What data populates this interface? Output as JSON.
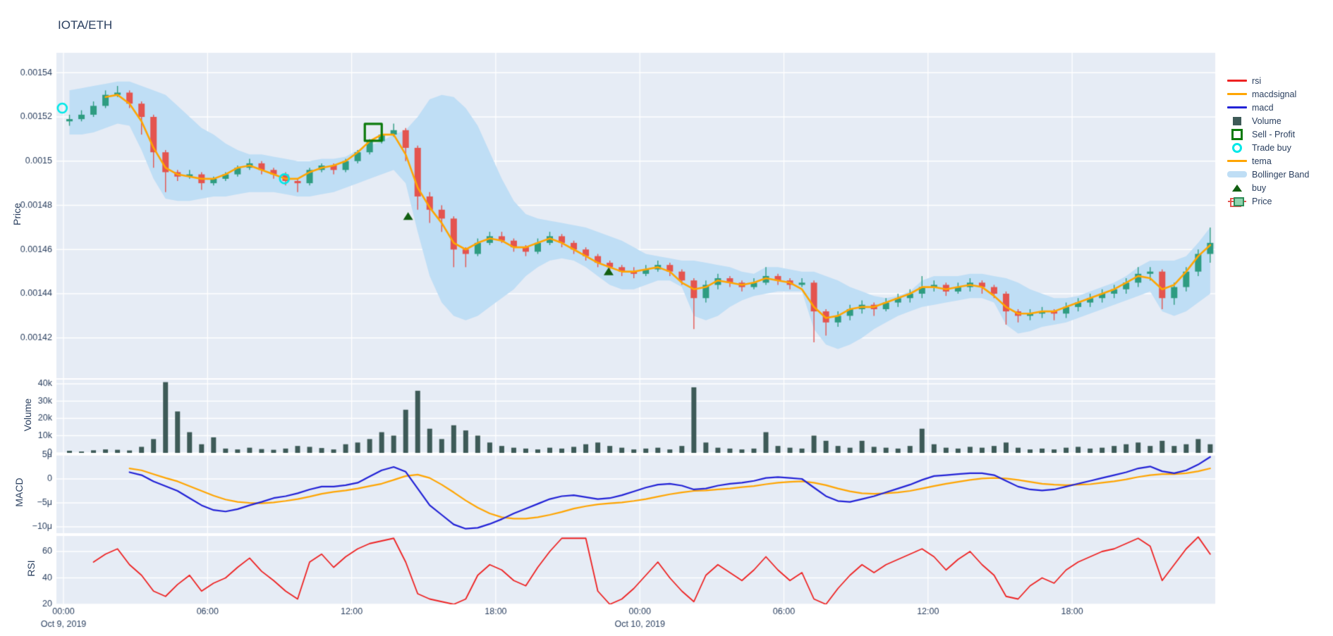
{
  "title": "IOTA/ETH",
  "colors": {
    "text": "#2a3f5f",
    "panel_bg": "#e6ecf5",
    "grid": "#ffffff",
    "candle_up": "#2e9c81",
    "candle_down": "#e4544f",
    "tema": "#ffa502",
    "macd": "#2222d6",
    "macdsignal": "#ffa502",
    "rsi": "#ee2222",
    "volume": "#3d5a57",
    "bollinger": "#bfdef5",
    "sell": "#0b7a0b",
    "trade_buy": "#00e8e8",
    "buy": "#115f11"
  },
  "legend": {
    "items": [
      {
        "label": "rsi",
        "type": "line",
        "color_key": "rsi"
      },
      {
        "label": "macdsignal",
        "type": "line",
        "color_key": "macdsignal"
      },
      {
        "label": "macd",
        "type": "line",
        "color_key": "macd"
      },
      {
        "label": "Volume",
        "type": "square",
        "color_key": "volume"
      },
      {
        "label": "Sell - Profit",
        "type": "open-square",
        "color_key": "sell"
      },
      {
        "label": "Trade buy",
        "type": "open-circle",
        "color_key": "trade_buy"
      },
      {
        "label": "tema",
        "type": "line",
        "color_key": "tema"
      },
      {
        "label": "Bollinger Band",
        "type": "band",
        "color_key": "bollinger"
      },
      {
        "label": "buy",
        "type": "triangle",
        "color_key": "buy"
      },
      {
        "label": "Price",
        "type": "candlestick",
        "color_key": "candle_up"
      }
    ]
  },
  "axes": {
    "x": {
      "ticks": [
        {
          "t": 0,
          "label": "00:00",
          "date": "Oct 9, 2019"
        },
        {
          "t": 6,
          "label": "06:00"
        },
        {
          "t": 12,
          "label": "12:00"
        },
        {
          "t": 18,
          "label": "18:00"
        },
        {
          "t": 24,
          "label": "00:00",
          "date": "Oct 10, 2019"
        },
        {
          "t": 30,
          "label": "06:00"
        },
        {
          "t": 36,
          "label": "12:00"
        },
        {
          "t": 42,
          "label": "18:00"
        }
      ]
    },
    "price": {
      "title": "Price",
      "ticks": [
        {
          "v": 1540,
          "label": "0.00154"
        },
        {
          "v": 1520,
          "label": "0.00152"
        },
        {
          "v": 1500,
          "label": "0.0015"
        },
        {
          "v": 1480,
          "label": "0.00148"
        },
        {
          "v": 1460,
          "label": "0.00146"
        },
        {
          "v": 1440,
          "label": "0.00144"
        },
        {
          "v": 1420,
          "label": "0.00142"
        }
      ]
    },
    "volume": {
      "title": "Volume",
      "ticks": [
        {
          "v": 40,
          "label": "40k"
        },
        {
          "v": 30,
          "label": "30k"
        },
        {
          "v": 20,
          "label": "20k"
        },
        {
          "v": 10,
          "label": "10k"
        },
        {
          "v": 0,
          "label": "0"
        }
      ]
    },
    "macd": {
      "title": "MACD",
      "ticks": [
        {
          "v": 5,
          "label": "5μ"
        },
        {
          "v": 0,
          "label": "0"
        },
        {
          "v": -5,
          "label": "−5μ"
        },
        {
          "v": -10,
          "label": "−10μ"
        }
      ]
    },
    "rsi": {
      "title": "RSI",
      "ticks": [
        {
          "v": 60,
          "label": "60"
        },
        {
          "v": 40,
          "label": "40"
        },
        {
          "v": 20,
          "label": "20"
        }
      ]
    }
  },
  "chart_data": {
    "type": "candlestick",
    "title": "IOTA/ETH",
    "x_start": "Oct 9, 2019 00:00",
    "interval_minutes": 30,
    "price_unit": "1e-6 ETH (values below are price × 10⁶)",
    "panels": [
      "Price",
      "Volume",
      "MACD",
      "RSI"
    ],
    "axis_ranges": {
      "price": [
        1402,
        1549
      ],
      "volume_k": [
        0,
        42.4
      ],
      "macd_u": [
        -11.3,
        5
      ],
      "rsi": [
        20,
        71.7
      ]
    },
    "ohlc": [
      [
        1518,
        1521,
        1516,
        1519
      ],
      [
        1519,
        1523,
        1518,
        1521
      ],
      [
        1521,
        1527,
        1520,
        1525
      ],
      [
        1525,
        1532,
        1524,
        1530
      ],
      [
        1530,
        1534,
        1529,
        1531
      ],
      [
        1531,
        1532,
        1524,
        1526
      ],
      [
        1526,
        1527,
        1512,
        1520
      ],
      [
        1520,
        1521,
        1497,
        1504
      ],
      [
        1504,
        1505,
        1486,
        1495
      ],
      [
        1495,
        1496,
        1491,
        1493
      ],
      [
        1493,
        1496,
        1492,
        1494
      ],
      [
        1494,
        1495,
        1487,
        1490
      ],
      [
        1490,
        1493,
        1489,
        1492
      ],
      [
        1492,
        1495,
        1491,
        1494
      ],
      [
        1494,
        1498,
        1493,
        1497
      ],
      [
        1497,
        1501,
        1496,
        1499
      ],
      [
        1499,
        1500,
        1494,
        1496
      ],
      [
        1496,
        1497,
        1492,
        1494
      ],
      [
        1494,
        1495,
        1489,
        1491
      ],
      [
        1491,
        1492,
        1486,
        1490
      ],
      [
        1490,
        1497,
        1489,
        1496
      ],
      [
        1496,
        1499,
        1495,
        1498
      ],
      [
        1498,
        1499,
        1494,
        1496
      ],
      [
        1496,
        1501,
        1495,
        1500
      ],
      [
        1500,
        1505,
        1499,
        1504
      ],
      [
        1504,
        1510,
        1503,
        1509
      ],
      [
        1509,
        1513,
        1508,
        1512
      ],
      [
        1512,
        1517,
        1511,
        1514
      ],
      [
        1514,
        1515,
        1500,
        1506
      ],
      [
        1506,
        1507,
        1478,
        1484
      ],
      [
        1484,
        1486,
        1472,
        1478
      ],
      [
        1478,
        1480,
        1468,
        1474
      ],
      [
        1474,
        1475,
        1452,
        1460
      ],
      [
        1460,
        1461,
        1452,
        1458
      ],
      [
        1458,
        1465,
        1457,
        1463
      ],
      [
        1463,
        1468,
        1462,
        1466
      ],
      [
        1466,
        1468,
        1463,
        1464
      ],
      [
        1464,
        1465,
        1459,
        1461
      ],
      [
        1461,
        1462,
        1457,
        1459
      ],
      [
        1459,
        1465,
        1458,
        1463
      ],
      [
        1463,
        1468,
        1462,
        1466
      ],
      [
        1466,
        1467,
        1461,
        1463
      ],
      [
        1463,
        1464,
        1458,
        1460
      ],
      [
        1460,
        1461,
        1455,
        1457
      ],
      [
        1457,
        1458,
        1452,
        1454
      ],
      [
        1454,
        1455,
        1450,
        1452
      ],
      [
        1452,
        1453,
        1448,
        1450
      ],
      [
        1450,
        1452,
        1447,
        1449
      ],
      [
        1449,
        1453,
        1448,
        1451
      ],
      [
        1451,
        1455,
        1450,
        1453
      ],
      [
        1453,
        1454,
        1448,
        1450
      ],
      [
        1450,
        1451,
        1444,
        1446
      ],
      [
        1446,
        1447,
        1424,
        1438
      ],
      [
        1438,
        1446,
        1436,
        1444
      ],
      [
        1444,
        1449,
        1442,
        1447
      ],
      [
        1447,
        1448,
        1443,
        1445
      ],
      [
        1445,
        1446,
        1441,
        1443
      ],
      [
        1443,
        1447,
        1442,
        1445
      ],
      [
        1445,
        1452,
        1444,
        1448
      ],
      [
        1448,
        1449,
        1444,
        1446
      ],
      [
        1446,
        1447,
        1442,
        1444
      ],
      [
        1444,
        1447,
        1443,
        1445
      ],
      [
        1445,
        1446,
        1418,
        1432
      ],
      [
        1432,
        1433,
        1421,
        1427
      ],
      [
        1427,
        1432,
        1425,
        1430
      ],
      [
        1430,
        1435,
        1428,
        1433
      ],
      [
        1433,
        1437,
        1431,
        1435
      ],
      [
        1435,
        1436,
        1430,
        1433
      ],
      [
        1433,
        1438,
        1432,
        1436
      ],
      [
        1436,
        1440,
        1434,
        1438
      ],
      [
        1438,
        1442,
        1436,
        1440
      ],
      [
        1440,
        1448,
        1438,
        1443
      ],
      [
        1443,
        1446,
        1441,
        1444
      ],
      [
        1444,
        1445,
        1439,
        1441
      ],
      [
        1441,
        1445,
        1440,
        1443
      ],
      [
        1443,
        1447,
        1441,
        1445
      ],
      [
        1445,
        1446,
        1440,
        1443
      ],
      [
        1443,
        1444,
        1438,
        1440
      ],
      [
        1440,
        1441,
        1426,
        1432
      ],
      [
        1432,
        1433,
        1427,
        1430
      ],
      [
        1430,
        1433,
        1428,
        1431
      ],
      [
        1431,
        1434,
        1429,
        1432
      ],
      [
        1432,
        1433,
        1428,
        1431
      ],
      [
        1431,
        1436,
        1429,
        1434
      ],
      [
        1434,
        1438,
        1432,
        1436
      ],
      [
        1436,
        1440,
        1434,
        1438
      ],
      [
        1438,
        1442,
        1436,
        1440
      ],
      [
        1440,
        1444,
        1438,
        1442
      ],
      [
        1442,
        1447,
        1440,
        1445
      ],
      [
        1445,
        1452,
        1443,
        1449
      ],
      [
        1449,
        1452,
        1446,
        1450
      ],
      [
        1450,
        1451,
        1433,
        1438
      ],
      [
        1438,
        1445,
        1435,
        1443
      ],
      [
        1443,
        1452,
        1441,
        1450
      ],
      [
        1450,
        1460,
        1448,
        1458
      ],
      [
        1458,
        1470,
        1454,
        1463
      ]
    ],
    "volume_k": [
      1.2,
      0.8,
      1.5,
      2,
      1.8,
      1.4,
      3.5,
      8,
      41,
      24,
      12,
      5,
      9,
      2.5,
      2,
      3,
      2.2,
      1.8,
      2.5,
      4,
      3.5,
      2.8,
      2,
      5,
      6,
      8,
      12,
      10,
      25,
      36,
      14,
      8,
      16,
      13,
      10,
      6,
      4,
      3,
      2.5,
      2,
      3,
      2.5,
      3.5,
      5,
      6,
      4,
      3,
      2,
      2.5,
      3,
      2,
      4,
      38,
      6,
      3,
      2.5,
      2,
      2.5,
      12,
      4,
      3,
      2.5,
      10,
      7,
      4,
      3,
      7,
      3.5,
      3,
      2.5,
      4,
      14,
      5,
      3,
      2.5,
      3.5,
      3,
      4,
      6,
      3,
      2,
      2.5,
      2,
      3,
      3.5,
      2.5,
      3,
      4,
      5,
      6,
      4,
      7,
      4,
      5,
      8,
      5
    ],
    "tema": [
      1519,
      1521,
      1525,
      1529,
      1530,
      1526,
      1518,
      1506,
      1497,
      1494,
      1493,
      1492,
      1492,
      1494,
      1497,
      1498,
      1496,
      1494,
      1492,
      1492,
      1495,
      1497,
      1498,
      1500,
      1504,
      1509,
      1512,
      1512,
      1503,
      1488,
      1479,
      1472,
      1463,
      1460,
      1463,
      1465,
      1464,
      1461,
      1461,
      1463,
      1465,
      1463,
      1460,
      1457,
      1454,
      1452,
      1450,
      1450,
      1451,
      1452,
      1450,
      1445,
      1442,
      1443,
      1446,
      1445,
      1444,
      1445,
      1447,
      1446,
      1445,
      1442,
      1434,
      1429,
      1430,
      1433,
      1434,
      1434,
      1436,
      1438,
      1440,
      1443,
      1443,
      1442,
      1443,
      1444,
      1443,
      1439,
      1434,
      1431,
      1431,
      1432,
      1432,
      1434,
      1436,
      1438,
      1440,
      1442,
      1445,
      1448,
      1447,
      1442,
      1444,
      1450,
      1457,
      1462
    ],
    "bollinger_upper": [
      1532,
      1533,
      1534,
      1535,
      1536,
      1536,
      1534,
      1532,
      1530,
      1525,
      1520,
      1515,
      1512,
      1508,
      1505,
      1503,
      1503,
      1502,
      1501,
      1500,
      1500,
      1501,
      1501,
      1502,
      1505,
      1507,
      1509,
      1512,
      1514,
      1520,
      1528,
      1530,
      1529,
      1524,
      1516,
      1504,
      1492,
      1482,
      1476,
      1474,
      1473,
      1472,
      1471,
      1470,
      1468,
      1466,
      1464,
      1461,
      1458,
      1457,
      1456,
      1455,
      1455,
      1454,
      1453,
      1452,
      1450,
      1449,
      1452,
      1452,
      1451,
      1450,
      1450,
      1448,
      1446,
      1443,
      1441,
      1439,
      1438,
      1439,
      1441,
      1446,
      1448,
      1448,
      1448,
      1449,
      1449,
      1448,
      1447,
      1445,
      1442,
      1440,
      1438,
      1438,
      1439,
      1441,
      1443,
      1445,
      1448,
      1452,
      1455,
      1455,
      1455,
      1457,
      1463,
      1470
    ],
    "bollinger_lower": [
      1512,
      1512,
      1513,
      1515,
      1517,
      1516,
      1505,
      1492,
      1483,
      1482,
      1482,
      1483,
      1484,
      1484,
      1485,
      1486,
      1486,
      1486,
      1485,
      1484,
      1484,
      1485,
      1486,
      1488,
      1490,
      1492,
      1494,
      1496,
      1490,
      1468,
      1448,
      1436,
      1430,
      1428,
      1430,
      1434,
      1438,
      1442,
      1448,
      1452,
      1455,
      1456,
      1455,
      1452,
      1448,
      1444,
      1442,
      1442,
      1444,
      1446,
      1446,
      1443,
      1430,
      1428,
      1430,
      1434,
      1437,
      1439,
      1440,
      1441,
      1441,
      1441,
      1424,
      1417,
      1415,
      1417,
      1420,
      1424,
      1427,
      1430,
      1432,
      1434,
      1435,
      1436,
      1437,
      1438,
      1438,
      1436,
      1426,
      1422,
      1423,
      1425,
      1426,
      1427,
      1429,
      1431,
      1433,
      1435,
      1437,
      1439,
      1441,
      1432,
      1430,
      1432,
      1436,
      1440
    ],
    "macd_u": [
      null,
      null,
      null,
      null,
      null,
      1.4,
      0.8,
      -0.5,
      -1.5,
      -2.5,
      -4,
      -5.5,
      -6.5,
      -6.8,
      -6.3,
      -5.5,
      -4.8,
      -4,
      -3.6,
      -3,
      -2.2,
      -1.6,
      -1.6,
      -1.3,
      -0.8,
      0.5,
      1.8,
      2.5,
      1.5,
      -2,
      -5.5,
      -7.5,
      -9.5,
      -10.4,
      -10.2,
      -9.4,
      -8.4,
      -7.2,
      -6.2,
      -5.2,
      -4.2,
      -3.6,
      -3.4,
      -3.8,
      -4.2,
      -4,
      -3.4,
      -2.6,
      -1.8,
      -1.2,
      -1,
      -1.4,
      -2.2,
      -2,
      -1.4,
      -1,
      -0.8,
      -0.4,
      0.2,
      0.4,
      0.2,
      0,
      -1.8,
      -3.6,
      -4.6,
      -4.8,
      -4.2,
      -3.6,
      -2.8,
      -2,
      -1.2,
      -0.2,
      0.6,
      0.8,
      1,
      1.2,
      1.2,
      0.8,
      -0.4,
      -1.6,
      -2.2,
      -2.4,
      -2.2,
      -1.6,
      -1,
      -0.4,
      0.2,
      0.8,
      1.4,
      2.2,
      2.6,
      1.6,
      1.2,
      1.8,
      3,
      4.6
    ],
    "macdsignal_u": [
      null,
      null,
      null,
      null,
      null,
      2.2,
      1.8,
      1,
      0.2,
      -0.5,
      -1.5,
      -2.5,
      -3.5,
      -4.3,
      -4.8,
      -5,
      -5.1,
      -4.9,
      -4.6,
      -4.2,
      -3.7,
      -3.1,
      -2.7,
      -2.4,
      -2,
      -1.5,
      -1,
      -0.2,
      0.6,
      0.9,
      0.2,
      -1.2,
      -2.8,
      -4.5,
      -6,
      -7.2,
      -8,
      -8.3,
      -8.3,
      -8,
      -7.5,
      -6.9,
      -6.2,
      -5.7,
      -5.3,
      -5.1,
      -4.9,
      -4.6,
      -4.2,
      -3.7,
      -3.2,
      -2.8,
      -2.5,
      -2.4,
      -2.2,
      -2,
      -1.7,
      -1.5,
      -1.1,
      -0.8,
      -0.6,
      -0.5,
      -0.8,
      -1.3,
      -2,
      -2.6,
      -3,
      -3.1,
      -3,
      -2.8,
      -2.5,
      -2,
      -1.5,
      -1,
      -0.6,
      -0.2,
      0.1,
      0.2,
      0.1,
      -0.2,
      -0.6,
      -1,
      -1.2,
      -1.3,
      -1.2,
      -1.1,
      -0.8,
      -0.5,
      -0.1,
      0.4,
      0.8,
      1,
      1,
      1.2,
      1.6,
      2.2
    ],
    "rsi": [
      null,
      null,
      52,
      58,
      62,
      50,
      42,
      30,
      26,
      35,
      42,
      30,
      36,
      40,
      48,
      55,
      45,
      38,
      30,
      24,
      52,
      58,
      48,
      56,
      62,
      66,
      68,
      70,
      52,
      28,
      24,
      22,
      20,
      24,
      42,
      50,
      46,
      38,
      34,
      48,
      60,
      70,
      70,
      70,
      30,
      20,
      24,
      32,
      42,
      52,
      40,
      30,
      22,
      42,
      50,
      44,
      38,
      46,
      56,
      46,
      38,
      44,
      24,
      20,
      32,
      42,
      50,
      44,
      50,
      54,
      58,
      62,
      56,
      46,
      54,
      60,
      50,
      42,
      26,
      24,
      34,
      40,
      36,
      46,
      52,
      56,
      60,
      62,
      66,
      70,
      64,
      38,
      50,
      62,
      72,
      58
    ],
    "markers": {
      "sell_profit": [
        {
          "t": 12.9,
          "price": 1513
        }
      ],
      "trade_buy": [
        {
          "t": -0.05,
          "price": 1524
        },
        {
          "t": 9.2,
          "price": 1492
        }
      ],
      "buy": [
        {
          "t": 14.35,
          "price": 1475
        },
        {
          "t": 22.7,
          "price": 1450
        }
      ]
    }
  }
}
